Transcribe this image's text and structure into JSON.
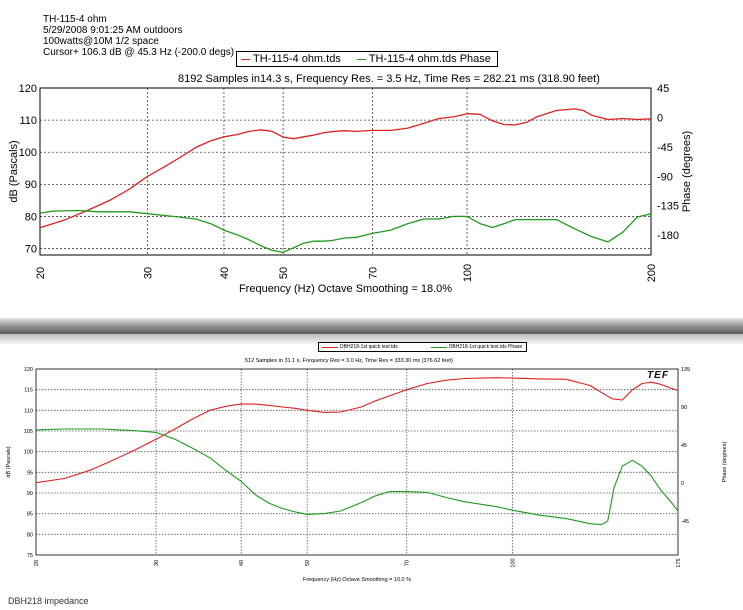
{
  "top": {
    "header_lines": [
      "TH-115-4 ohm",
      "5/29/2008 9:01:25 AM outdoors",
      "100watts@10M 1/2 space",
      "Cursor+ 106.3 dB @ 45.3 Hz (-200.0 degs)"
    ],
    "subtitle": "8192 Samples in14.3 s, Frequency Res. = 3.5 Hz, Time Res = 282.21 ms (318.90 feet)"
  },
  "bottom": {
    "subtitle": "512 Samples in 31.1 s, Frequency Res = 3.0 Hz, Time Res = 333.30 ms (376.62 feet)",
    "logo": "TEF",
    "caption": "DBH218 impedance"
  },
  "colors": {
    "magnitude": "#dd2222",
    "phase": "#1f9a1f",
    "grid": "#555555",
    "divider": "#707070"
  },
  "chart_data": [
    {
      "type": "line",
      "title": "",
      "subtitle": "8192 Samples in14.3 s, Frequency Res. = 3.5 Hz, Time Res = 282.21 ms (318.90 feet)",
      "xlabel": "Frequency (Hz) Octave Smoothing = 18.0%",
      "ylabel": "dB (Pascals)",
      "y2label": "Phase (degrees)",
      "x_scale": "log",
      "xlim": [
        20,
        200
      ],
      "ylim": [
        68,
        120
      ],
      "y2lim": [
        -210,
        45
      ],
      "x_ticks": [
        20,
        30,
        40,
        50,
        70,
        100,
        200
      ],
      "y_ticks": [
        70,
        80,
        90,
        100,
        110,
        120
      ],
      "y2_ticks": [
        45,
        0,
        -45,
        -90,
        -135,
        -180
      ],
      "legend_position": "top-center",
      "grid": true,
      "series": [
        {
          "name": "TH-115-4 ohm.tds",
          "axis": "left",
          "color": "#dd2222",
          "x": [
            20,
            22,
            24,
            26,
            28,
            30,
            32,
            34,
            36,
            38,
            40,
            42,
            44,
            46,
            48,
            50,
            52,
            54,
            56,
            58,
            60,
            63,
            66,
            70,
            75,
            80,
            85,
            90,
            95,
            100,
            105,
            110,
            115,
            120,
            125,
            130,
            140,
            150,
            155,
            160,
            170,
            180,
            190,
            200
          ],
          "y": [
            76.5,
            79,
            82,
            85,
            88.5,
            92.5,
            95.5,
            98.5,
            101.5,
            103.5,
            104.8,
            105.5,
            106.5,
            107,
            106.5,
            104.7,
            104.2,
            104.8,
            105.3,
            106,
            106.4,
            106.7,
            106.5,
            106.8,
            106.8,
            107.5,
            109,
            110.5,
            111,
            112,
            111.8,
            109.8,
            108.6,
            108.5,
            109.3,
            111,
            113,
            113.5,
            113,
            111.5,
            110.2,
            110.5,
            110.2,
            110.4
          ]
        },
        {
          "name": "TH-115-4 ohm.tds Phase",
          "axis": "right",
          "color": "#1f9a1f",
          "x": [
            20,
            21,
            23,
            25,
            28,
            30,
            33,
            36,
            38,
            40,
            42,
            44,
            46,
            48,
            50,
            52,
            54,
            56,
            58,
            60,
            63,
            66,
            70,
            75,
            80,
            85,
            90,
            95,
            100,
            105,
            110,
            115,
            120,
            130,
            140,
            150,
            160,
            170,
            180,
            190,
            200
          ],
          "y": [
            -146,
            -143,
            -142,
            -144,
            -144,
            -147,
            -151,
            -155,
            -162,
            -172,
            -179,
            -187,
            -196,
            -203,
            -206,
            -199,
            -192,
            -189,
            -189,
            -188,
            -184,
            -183,
            -177,
            -172,
            -162,
            -155,
            -155,
            -151,
            -151,
            -162,
            -168,
            -162,
            -156,
            -156,
            -156,
            -170,
            -182,
            -190,
            -175,
            -152,
            -147
          ]
        }
      ]
    },
    {
      "type": "line",
      "title": "",
      "subtitle": "512 Samples in 31.1 s, Frequency Res = 3.0 Hz, Time Res = 333.30 ms (376.62 feet)",
      "xlabel": "Frequency (Hz) Octave Smoothing = 10.0 %",
      "ylabel": "dB (Pascals)",
      "y2label": "Phase (degrees)",
      "x_scale": "log",
      "xlim": [
        20,
        175
      ],
      "ylim": [
        75,
        120
      ],
      "y2lim": [
        -85,
        135
      ],
      "x_ticks": [
        20,
        30,
        40,
        50,
        70,
        100,
        175
      ],
      "y_ticks": [
        75,
        80,
        85,
        90,
        95,
        100,
        105,
        110,
        115,
        120
      ],
      "y2_ticks": [
        135,
        90,
        45,
        0,
        -45
      ],
      "legend_position": "top-center",
      "grid": true,
      "series": [
        {
          "name": "DBH218-1st quick test.tds",
          "axis": "left",
          "color": "#dd2222",
          "x": [
            20,
            22,
            24,
            26,
            28,
            30,
            32,
            34,
            36,
            38,
            40,
            42,
            44,
            46,
            48,
            50,
            53,
            56,
            60,
            63,
            66,
            70,
            75,
            80,
            85,
            90,
            95,
            100,
            110,
            120,
            130,
            140,
            145,
            150,
            155,
            160,
            165,
            170,
            175
          ],
          "y": [
            92.5,
            93.5,
            95.5,
            98,
            100.5,
            103,
            105.5,
            108,
            110,
            111,
            111.5,
            111.5,
            111.2,
            110.8,
            110.5,
            110,
            109.5,
            109.6,
            110.8,
            112.3,
            113.5,
            115,
            116.5,
            117.3,
            117.7,
            117.8,
            117.9,
            117.8,
            117.6,
            117.5,
            116,
            112.8,
            112.5,
            115,
            116.5,
            116.8,
            116.3,
            115.5,
            114.8
          ]
        },
        {
          "name": "DBH218-1st quick test.tds Phase",
          "axis": "right",
          "color": "#1f9a1f",
          "x": [
            20,
            22,
            25,
            28,
            30,
            32,
            34,
            36,
            38,
            40,
            42,
            44,
            46,
            48,
            50,
            53,
            56,
            60,
            63,
            66,
            70,
            75,
            80,
            85,
            90,
            95,
            100,
            110,
            120,
            130,
            135,
            138,
            141,
            145,
            150,
            155,
            160,
            165,
            170,
            175
          ],
          "y": [
            63,
            64,
            64,
            62,
            60,
            52,
            41,
            30,
            15,
            2,
            -14,
            -24,
            -30,
            -34,
            -37,
            -36,
            -33,
            -23,
            -15,
            -10,
            -10,
            -11,
            -17,
            -22,
            -25,
            -28,
            -32,
            -38,
            -42,
            -48,
            -49,
            -45,
            -5,
            20,
            27,
            20,
            8,
            -8,
            -20,
            -33
          ]
        }
      ]
    }
  ]
}
